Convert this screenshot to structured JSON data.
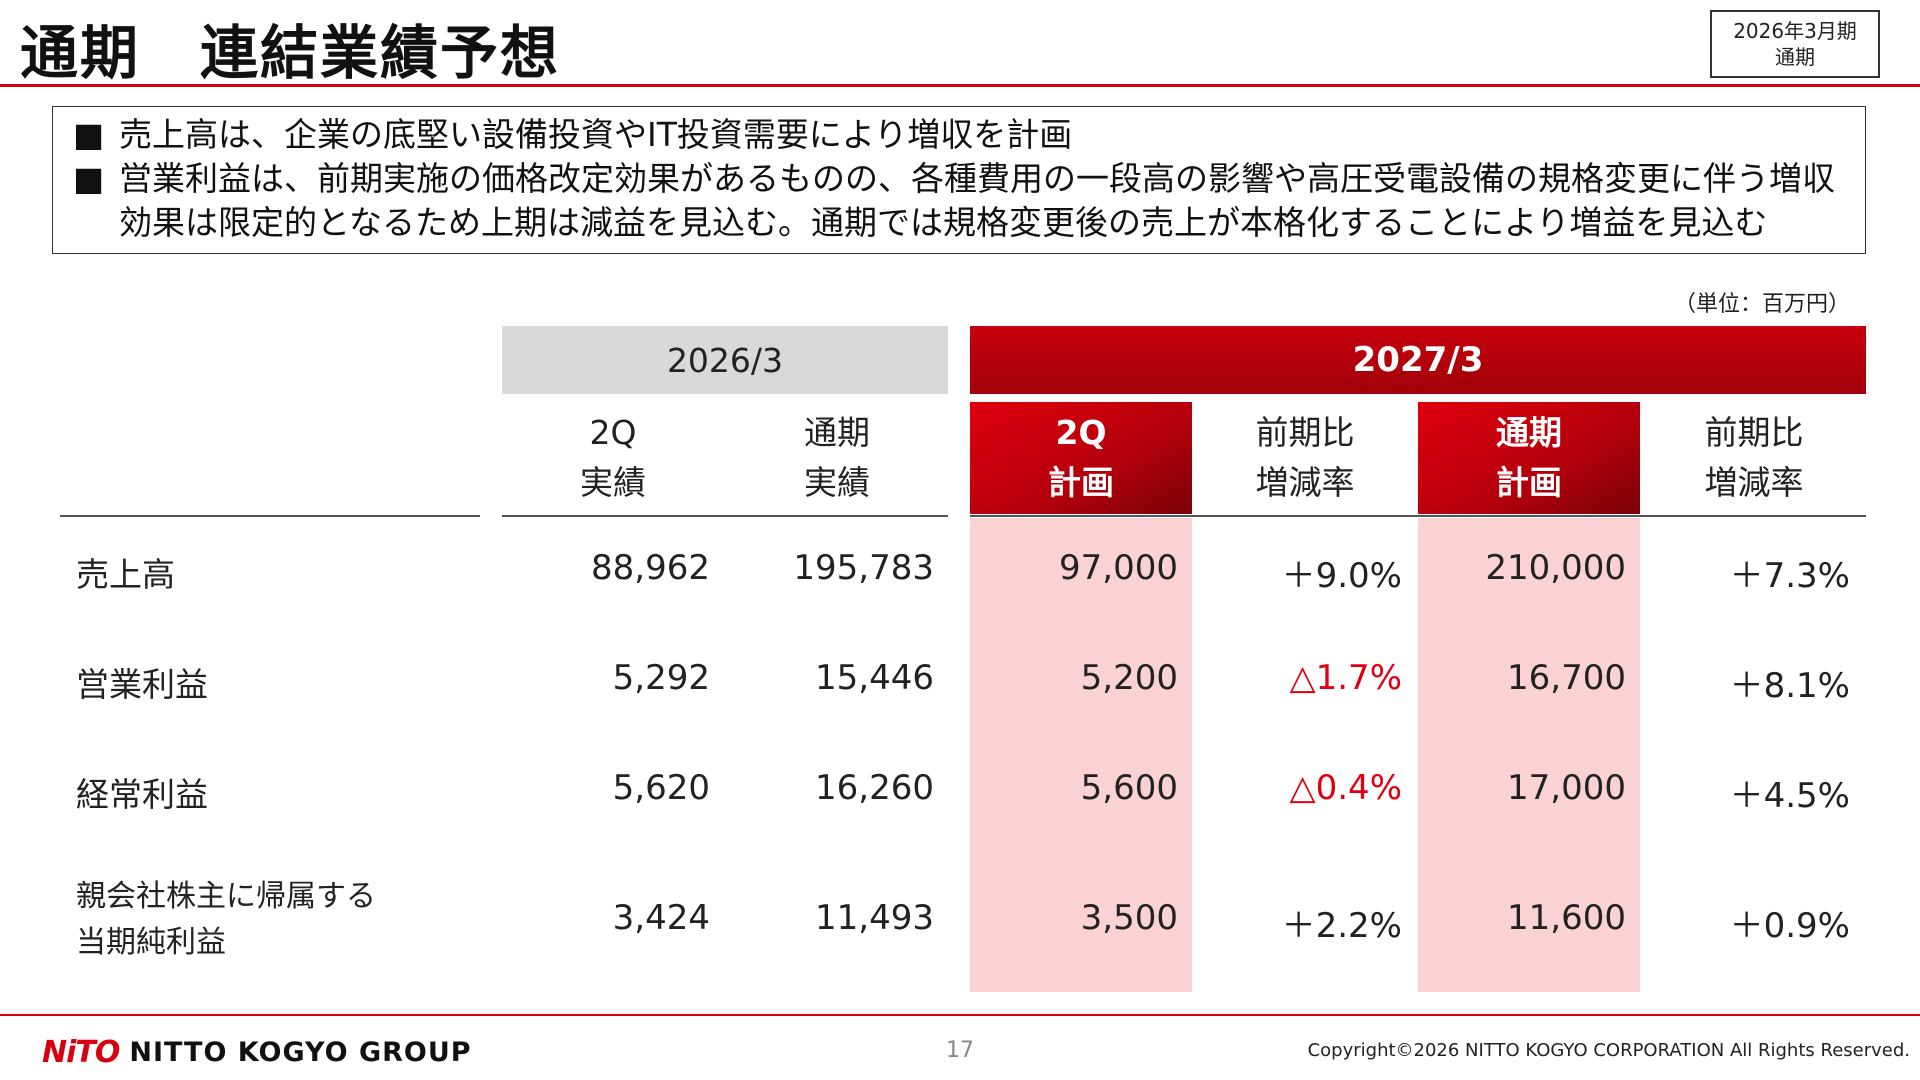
{
  "title": "通期　連結業績予想",
  "period_box": {
    "line1": "2026年3月期",
    "line2": "通期"
  },
  "summary": [
    "売上高は、企業の底堅い設備投資やIT投資需要により増収を計画",
    "営業利益は、前期実施の価格改定効果があるものの、各種費用の一段高の影響や高圧受電設備の規格変更に伴う増収効果は限定的となるため上期は減益を見込む。通期では規格変更後の売上が本格化することにより増益を見込む"
  ],
  "bullet_mark": "■",
  "unit": "（単位：百万円）",
  "table": {
    "group_2026": "2026/3",
    "group_2027": "2027/3",
    "columns": [
      {
        "l1": "2Q",
        "l2": "実績"
      },
      {
        "l1": "通期",
        "l2": "実績"
      },
      {
        "l1": "2Q",
        "l2": "計画"
      },
      {
        "l1": "前期比",
        "l2": "増減率"
      },
      {
        "l1": "通期",
        "l2": "計画"
      },
      {
        "l1": "前期比",
        "l2": "増減率"
      }
    ],
    "rows": [
      {
        "label1": "売上高",
        "label2": "",
        "values": [
          "88,962",
          "195,783",
          "97,000",
          "＋9.0%",
          "210,000",
          "＋7.3%"
        ]
      },
      {
        "label1": "営業利益",
        "label2": "",
        "values": [
          "5,292",
          "15,446",
          "5,200",
          "△1.7%",
          "16,700",
          "＋8.1%"
        ]
      },
      {
        "label1": "経常利益",
        "label2": "",
        "values": [
          "5,620",
          "16,260",
          "5,600",
          "△0.4%",
          "17,000",
          "＋4.5%"
        ]
      },
      {
        "label1": "親会社株主に帰属する",
        "label2": "当期純利益",
        "values": [
          "3,424",
          "11,493",
          "3,500",
          "＋2.2%",
          "11,600",
          "＋0.9%"
        ]
      }
    ]
  },
  "footer": {
    "logo_mark": "NiTO",
    "logo_text": "NITTO KOGYO GROUP",
    "page": "17",
    "copyright": "Copyright©2026 NITTO KOGYO CORPORATION All Rights Reserved."
  },
  "colors": {
    "accent": "#d7000f",
    "pink": "#fbd2d3",
    "negative": "#e00010"
  }
}
